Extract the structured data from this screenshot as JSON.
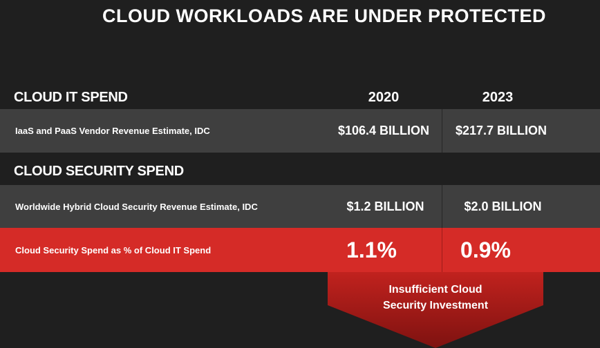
{
  "title": "CLOUD WORKLOADS ARE UNDER PROTECTED",
  "cloud_it": {
    "heading": "CLOUD IT SPEND",
    "year1": "2020",
    "year2": "2023",
    "row_label": "IaaS and PaaS Vendor Revenue Estimate, IDC",
    "value_2020": "$106.4 BILLION",
    "value_2023": "$217.7 BILLION"
  },
  "cloud_security": {
    "heading": "CLOUD SECURITY SPEND",
    "row_label": "Worldwide Hybrid Cloud Security Revenue Estimate, IDC",
    "value_2020": "$1.2 BILLION",
    "value_2023": "$2.0 BILLION"
  },
  "ratio": {
    "row_label": "Cloud Security Spend as % of Cloud IT Spend",
    "value_2020": "1.1%",
    "value_2023": "0.9%"
  },
  "callout": {
    "line1": "Insufficient Cloud",
    "line2": "Security Investment"
  },
  "colors": {
    "background": "#1f1f1f",
    "row_gray": "#3f3f3f",
    "accent_red": "#d52b27",
    "arrow_dark_red": "#8f1411"
  }
}
